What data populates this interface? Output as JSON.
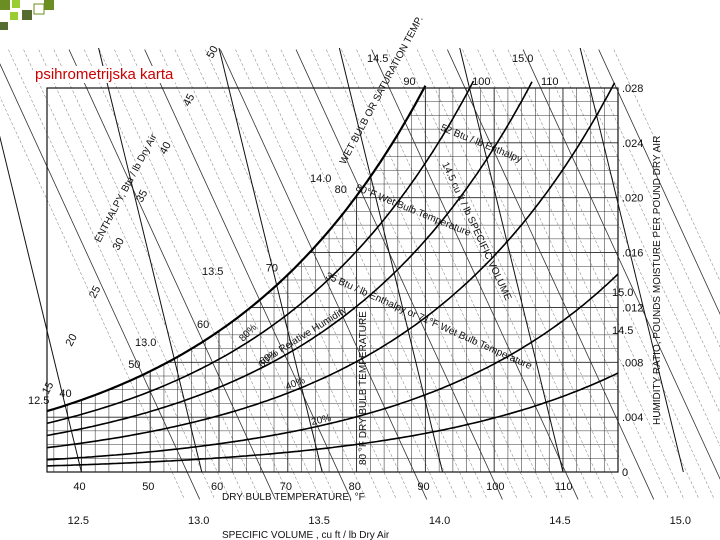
{
  "slide": {
    "title": "psihrometrijska karta",
    "accent_colors": [
      "#6b8e23",
      "#9acd32",
      "#556b2f"
    ]
  },
  "chart_data": {
    "type": "line",
    "title": "",
    "xlabel": "DRY BULB TEMPERATURE, °F",
    "ylabel": "HUMIDITY RATIO, POUNDS MOISTURE PER POUND DRY AIR",
    "xlim": [
      35,
      118
    ],
    "ylim": [
      0,
      0.028
    ],
    "x_ticks": [
      "40",
      "50",
      "60",
      "70",
      "80",
      "90",
      "100",
      "110"
    ],
    "y_ticks": [
      "0",
      ".004",
      ".008",
      ".012",
      ".016",
      ".020",
      ".024",
      ".028"
    ],
    "secondary_labels": {
      "enthalpy_axis": "ENTHALPY, Btu / lb Dry Air",
      "enthalpy_ticks": [
        "15",
        "20",
        "25",
        "30",
        "35",
        "40",
        "45",
        "50"
      ],
      "saturation_label": "WET BULB OR SATURATION TEMP.",
      "saturation_ticks": [
        "40",
        "50",
        "60",
        "70",
        "80",
        "90",
        "100",
        "110"
      ],
      "specific_volume_axis": "SPECIFIC VOLUME , cu ft / lb Dry Air",
      "specific_volume_ticks": [
        "12.5",
        "13.0",
        "13.5",
        "14.0",
        "14.5",
        "15.0"
      ],
      "left_volume_ticks": [
        "12.5",
        "13.0",
        "13.5",
        "14.0",
        "14.5",
        "15.0"
      ],
      "right_volume_ticks": [
        "15.0",
        "14.5"
      ]
    },
    "annotations": [
      "52 Btu / lb Enthalpy",
      "80°F Wet Bulb Temperature",
      "14.5 cu ft / lb SPECIFIC VOLUME",
      "35 Btu / lb Enthalpy or 71°F Wet Bulb Temperature",
      "60% Relative Humidity",
      "80 °F DRY BULB TEMPERATURE",
      "80%",
      "60%",
      "40%",
      "20%"
    ],
    "series": [
      {
        "name": "100%",
        "rh": 1.0
      },
      {
        "name": "80%",
        "rh": 0.8
      },
      {
        "name": "60%",
        "rh": 0.6
      },
      {
        "name": "40%",
        "rh": 0.4
      },
      {
        "name": "20%",
        "rh": 0.2
      },
      {
        "name": "",
        "rh": 0.1
      }
    ],
    "grid": true
  }
}
